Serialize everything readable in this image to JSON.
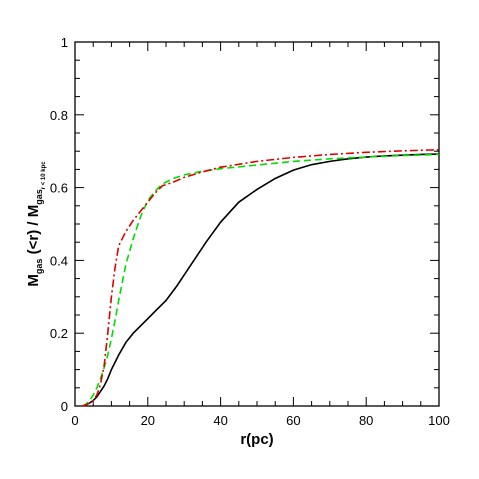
{
  "chart_data": {
    "type": "line",
    "xlabel": "r(pc)",
    "ylabel": {
      "main": "M",
      "sub": "gas",
      "middle": " (<r) / M",
      "sub2": "gas",
      "sub3": "r < 10 kpc"
    },
    "xlim": [
      0,
      100
    ],
    "ylim": [
      0,
      1
    ],
    "x_ticks": [
      "0",
      "20",
      "40",
      "60",
      "80",
      "100"
    ],
    "y_ticks": [
      "0",
      "0.2",
      "0.4",
      "0.6",
      "0.8",
      "1"
    ],
    "x_tick_values": [
      0,
      20,
      40,
      60,
      80,
      100
    ],
    "y_tick_values": [
      0,
      0.2,
      0.4,
      0.6,
      0.8,
      1
    ],
    "grid": false,
    "series": [
      {
        "style": "solid",
        "color": "#000000",
        "x": [
          2,
          3,
          4,
          5,
          6,
          7,
          8,
          9,
          10,
          12,
          14,
          16,
          18,
          20,
          22,
          25,
          28,
          30,
          33,
          36,
          40,
          45,
          50,
          55,
          60,
          65,
          70,
          75,
          80,
          85,
          90,
          95,
          100
        ],
        "y": [
          0.0,
          0.003,
          0.008,
          0.015,
          0.025,
          0.04,
          0.055,
          0.075,
          0.1,
          0.14,
          0.175,
          0.2,
          0.22,
          0.24,
          0.26,
          0.29,
          0.33,
          0.36,
          0.405,
          0.45,
          0.505,
          0.56,
          0.595,
          0.625,
          0.648,
          0.663,
          0.672,
          0.679,
          0.684,
          0.687,
          0.689,
          0.691,
          0.692
        ]
      },
      {
        "style": "dashed",
        "color": "#00dd00",
        "x": [
          2,
          3,
          4,
          5,
          6,
          7,
          8,
          9,
          10,
          11,
          12,
          14,
          16,
          18,
          20,
          22,
          24,
          27,
          30,
          35,
          40,
          50,
          60,
          70,
          80,
          90,
          100
        ],
        "y": [
          0.0,
          0.005,
          0.015,
          0.03,
          0.05,
          0.075,
          0.105,
          0.14,
          0.185,
          0.235,
          0.29,
          0.39,
          0.46,
          0.52,
          0.565,
          0.59,
          0.61,
          0.625,
          0.635,
          0.645,
          0.652,
          0.662,
          0.672,
          0.679,
          0.684,
          0.688,
          0.691
        ]
      },
      {
        "style": "dashdot",
        "color": "#dd0000",
        "x": [
          2,
          3,
          4,
          5,
          6,
          7,
          8,
          9,
          10,
          11,
          12,
          14,
          16,
          18,
          20,
          22,
          24,
          27,
          30,
          35,
          40,
          50,
          60,
          70,
          80,
          90,
          100
        ],
        "y": [
          0.0,
          0.003,
          0.008,
          0.015,
          0.03,
          0.06,
          0.11,
          0.2,
          0.3,
          0.38,
          0.44,
          0.48,
          0.51,
          0.535,
          0.56,
          0.585,
          0.605,
          0.615,
          0.628,
          0.643,
          0.656,
          0.672,
          0.683,
          0.691,
          0.697,
          0.701,
          0.704
        ]
      }
    ]
  }
}
